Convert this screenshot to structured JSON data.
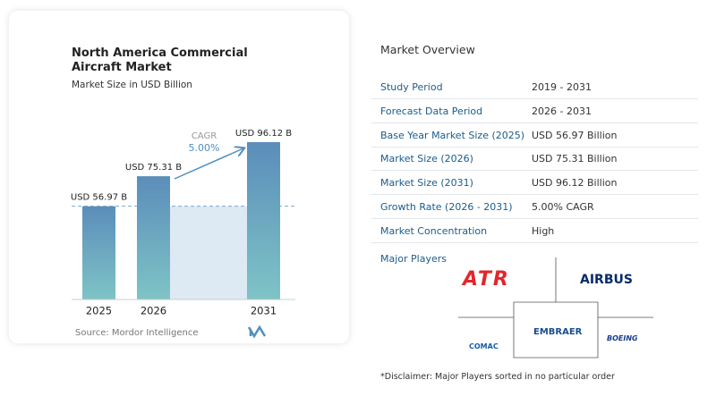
{
  "chart_data": {
    "type": "bar",
    "title": "North America Commercial Aircraft Market",
    "subtitle": "Market Size in USD Billion",
    "categories": [
      "2025",
      "2026",
      "2031"
    ],
    "values": [
      56.97,
      75.31,
      96.12
    ],
    "value_labels": [
      "USD 56.97 B",
      "USD 75.31 B",
      "USD 96.12 B"
    ],
    "annotations": [
      "CAGR",
      "5.00%"
    ],
    "source": "Source: Mordor Intelligence"
  },
  "overview": {
    "title": "Market Overview",
    "rows": [
      [
        "Study Period",
        "2019 - 2031"
      ],
      [
        "Forecast Data Period",
        "2026 - 2031"
      ],
      [
        "Base Year Market Size (2025)",
        "USD 56.97 Billion"
      ],
      [
        "Market Size (2026)",
        "USD 75.31 Billion"
      ],
      [
        "Market Size (2031)",
        "USD 96.12 Billion"
      ],
      [
        "Growth Rate (2026 - 2031)",
        "5.00% CAGR"
      ],
      [
        "Market Concentration",
        "High"
      ]
    ]
  },
  "players": {
    "title": "Major Players",
    "logos": [
      "ATR",
      "AIRBUS",
      "COMAC",
      "EMBRAER",
      "BOEING"
    ]
  },
  "disclaimer": "*Disclaimer: Major Players sorted in no particular order"
}
